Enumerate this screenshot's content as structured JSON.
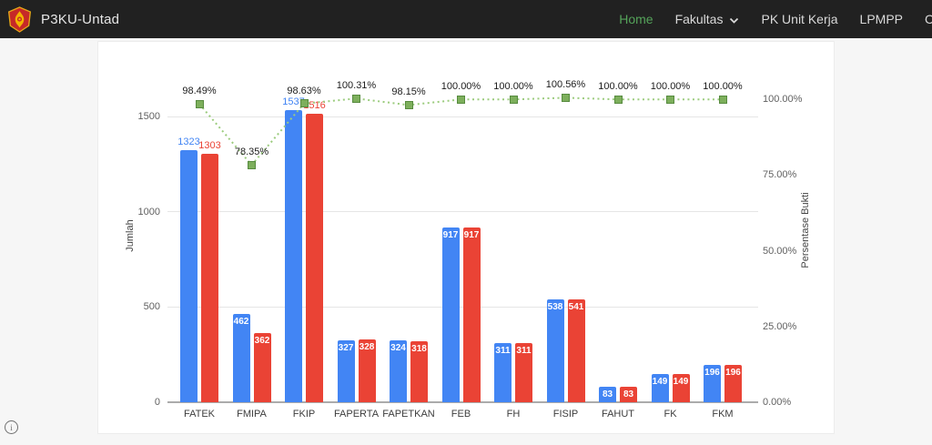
{
  "navbar": {
    "brand": "P3KU-Untad",
    "items": [
      {
        "label": "Home",
        "active": true,
        "caret": false
      },
      {
        "label": "Fakultas",
        "active": false,
        "caret": true
      },
      {
        "label": "PK Unit Kerja",
        "active": false,
        "caret": false
      },
      {
        "label": "LPMPP",
        "active": false,
        "caret": false
      }
    ],
    "partial_item": "C",
    "colors": {
      "bg": "#212121",
      "link": "#d9d9d9",
      "active": "#55a35a"
    }
  },
  "info_icon": "i",
  "chart_data": {
    "type": "combo-bar-line",
    "categories": [
      "FATEK",
      "FMIPA",
      "FKIP",
      "FAPERTA",
      "FAPETKAN",
      "FEB",
      "FH",
      "FISIP",
      "FAHUT",
      "FK",
      "FKM"
    ],
    "series": [
      {
        "name": "bars-blue",
        "type": "bar",
        "color": "#4285F4",
        "values": [
          1323,
          462,
          1537,
          327,
          324,
          917,
          311,
          538,
          83,
          149,
          196
        ]
      },
      {
        "name": "bars-red",
        "type": "bar",
        "color": "#EA4335",
        "values": [
          1303,
          362,
          1516,
          328,
          318,
          917,
          311,
          541,
          83,
          149,
          196
        ]
      },
      {
        "name": "line-percent",
        "type": "line",
        "marker_color": "#7daf5c",
        "marker_border": "#578b3f",
        "line_color": "#9ccc7e",
        "values": [
          98.49,
          78.35,
          98.63,
          100.31,
          98.15,
          100.0,
          100.0,
          100.56,
          100.0,
          100.0,
          100.0
        ],
        "labels": [
          "98.49%",
          "78.35%",
          "98.63%",
          "100.31%",
          "98.15%",
          "100.00%",
          "100.00%",
          "100.56%",
          "100.00%",
          "100.00%",
          "100.00%"
        ]
      }
    ],
    "left_axis": {
      "title": "Jumlah",
      "ticks": [
        0,
        500,
        1000,
        1500
      ],
      "max": 1750
    },
    "right_axis": {
      "title": "Persentase Bukti",
      "ticks": [
        "0.00%",
        "25.00%",
        "50.00%",
        "75.00%",
        "100.00%"
      ],
      "tick_values": [
        0,
        25,
        50,
        75,
        100
      ],
      "max": 110
    },
    "grid": true,
    "legend": "none"
  }
}
